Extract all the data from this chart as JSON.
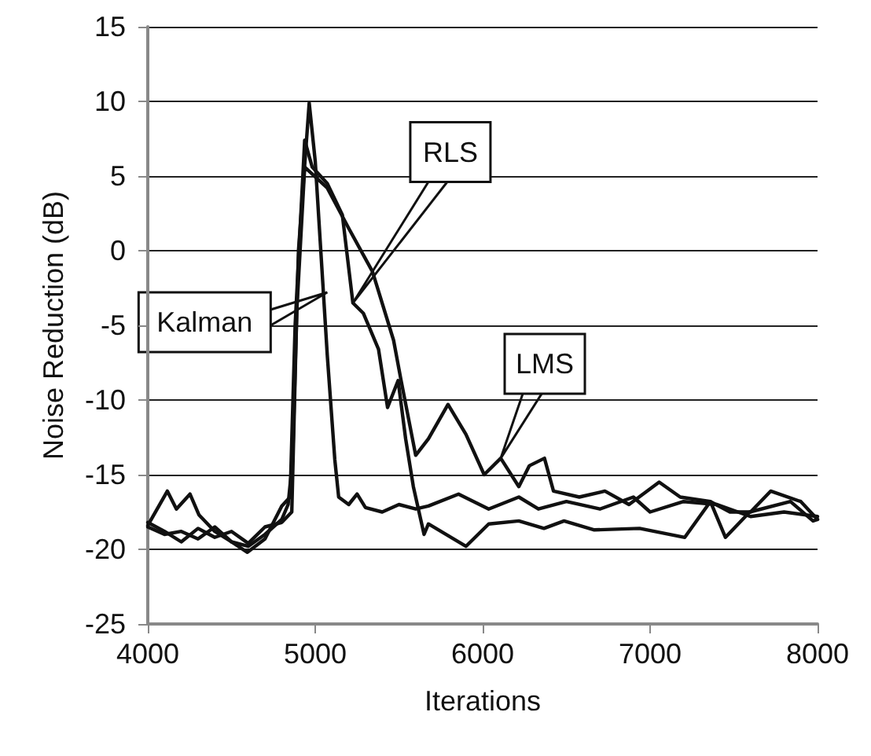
{
  "chart_data": {
    "type": "line",
    "xlabel": "Iterations",
    "ylabel": "Noise Reduction (dB)",
    "xlim": [
      4000,
      8000
    ],
    "xticks": [
      4000,
      5000,
      6000,
      7000,
      8000
    ],
    "ylim": [
      -25,
      15
    ],
    "yticks": [
      -25,
      -20,
      -15,
      -10,
      -5,
      0,
      5,
      10,
      15
    ],
    "grid": "y",
    "legend": false,
    "marker": "none",
    "line_style": "solid",
    "series": [
      {
        "name": "Kalman",
        "color": "#111111",
        "x": [
          4000,
          4100,
          4200,
          4300,
          4400,
          4500,
          4600,
          4700,
          4800,
          4838,
          4865,
          4900,
          4964,
          5000,
          5072,
          5117,
          5140,
          5200,
          5250,
          5300,
          5400,
          5500,
          5600,
          5676,
          5856,
          6036,
          6216,
          6333,
          6500,
          6700,
          6900,
          7000,
          7200,
          7400,
          7600,
          7800,
          8000
        ],
        "values": [
          -18.5,
          -19,
          -18.8,
          -19.3,
          -18.5,
          -19.5,
          -19.8,
          -19,
          -18,
          -17,
          -14,
          0,
          9.9,
          6,
          -7,
          -14,
          -16.5,
          -17,
          -16.3,
          -17.2,
          -17.5,
          -17,
          -17.3,
          -17.1,
          -16.3,
          -17.3,
          -16.5,
          -17.3,
          -16.8,
          -17.3,
          -16.5,
          -17.5,
          -16.8,
          -17,
          -17.8,
          -17.5,
          -17.8
        ]
      },
      {
        "name": "RLS",
        "color": "#111111",
        "x": [
          4000,
          4117,
          4171,
          4252,
          4306,
          4400,
          4500,
          4595,
          4700,
          4800,
          4850,
          4880,
          4937,
          4982,
          5072,
          5162,
          5225,
          5288,
          5378,
          5432,
          5495,
          5540,
          5586,
          5650,
          5676,
          5900,
          6036,
          6216,
          6366,
          6486,
          6667,
          6937,
          7207,
          7360,
          7450,
          7595,
          7838,
          7973,
          8000
        ],
        "values": [
          -18.4,
          -16.1,
          -17.3,
          -16.3,
          -17.7,
          -18.8,
          -19.5,
          -20.2,
          -19.3,
          -17.1,
          -16.5,
          -5,
          7.4,
          5.6,
          4.5,
          2.4,
          -3.5,
          -4.2,
          -6.6,
          -10.5,
          -8.7,
          -12.6,
          -15.8,
          -19,
          -18.3,
          -19.8,
          -18.3,
          -18.1,
          -18.6,
          -18.1,
          -18.7,
          -18.6,
          -19.2,
          -16.8,
          -19.2,
          -17.5,
          -16.8,
          -18.1,
          -18
        ]
      },
      {
        "name": "LMS",
        "color": "#111111",
        "x": [
          4000,
          4100,
          4200,
          4300,
          4400,
          4500,
          4600,
          4700,
          4800,
          4860,
          4890,
          4937,
          5072,
          5200,
          5342,
          5468,
          5513,
          5600,
          5676,
          5793,
          5900,
          6009,
          6108,
          6216,
          6279,
          6369,
          6423,
          6577,
          6730,
          6874,
          7054,
          7180,
          7360,
          7477,
          7600,
          7720,
          7900,
          8000
        ],
        "values": [
          -18.2,
          -18.8,
          -19.5,
          -18.6,
          -19.2,
          -18.8,
          -19.6,
          -18.5,
          -18.2,
          -17.5,
          -4,
          5.6,
          4.2,
          1.5,
          -1.4,
          -6,
          -8.7,
          -13.7,
          -12.6,
          -10.3,
          -12.3,
          -15,
          -13.9,
          -15.8,
          -14.4,
          -13.9,
          -16.1,
          -16.5,
          -16.1,
          -17,
          -15.5,
          -16.5,
          -16.8,
          -17.5,
          -17.5,
          -16.1,
          -16.8,
          -18
        ]
      }
    ]
  }
}
